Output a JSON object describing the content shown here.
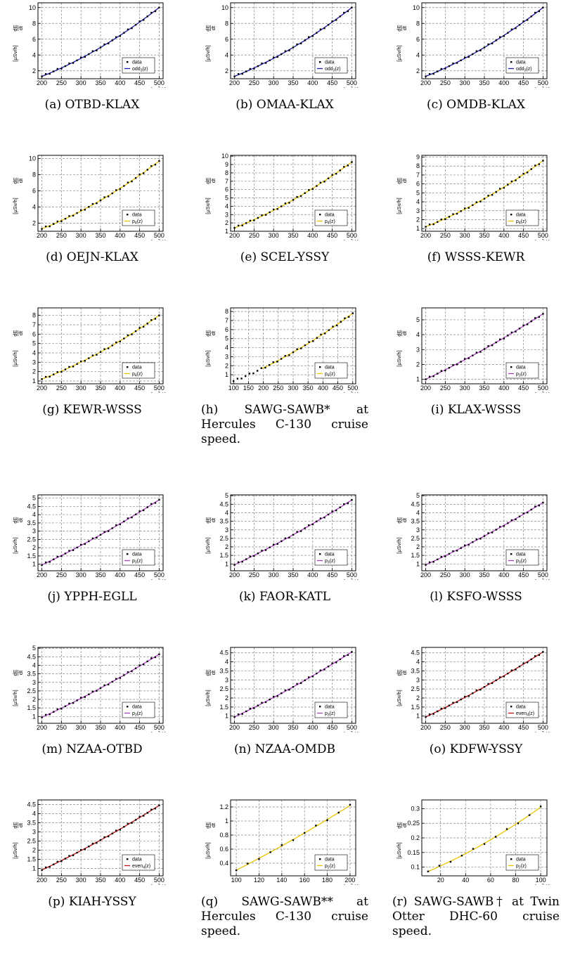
{
  "ylabel_top": "dE",
  "ylabel_bottom": "dt",
  "ylabel_unit": "[μSv/h]",
  "xlabel": "z [10",
  "xlabel_exp": "2",
  "xlabel_unit": " ft]",
  "legend_data": "data",
  "chart_data": [
    {
      "id": "a",
      "route": "OTBD-KLAX",
      "caption": "(a) OTBD-KLAX",
      "fit": "odd",
      "fit_sub": "3",
      "fit_color": "#1a1aa8",
      "xlim": [
        190,
        510
      ],
      "xticks": [
        200,
        250,
        300,
        350,
        400,
        450,
        500
      ],
      "ylim": [
        1,
        10.6
      ],
      "yticks": [
        2,
        4,
        6,
        8,
        10
      ],
      "x_start": 200,
      "x_end": 500,
      "y_start": 1.3,
      "y_end": 10.0,
      "curv": 0.32
    },
    {
      "id": "b",
      "route": "OMAA-KLAX",
      "caption": "(b) OMAA-KLAX",
      "fit": "odd",
      "fit_sub": "3",
      "fit_color": "#1a1aa8",
      "xlim": [
        190,
        510
      ],
      "xticks": [
        200,
        250,
        300,
        350,
        400,
        450,
        500
      ],
      "ylim": [
        1,
        10.6
      ],
      "yticks": [
        2,
        4,
        6,
        8,
        10
      ],
      "x_start": 200,
      "x_end": 500,
      "y_start": 1.3,
      "y_end": 10.0,
      "curv": 0.32
    },
    {
      "id": "c",
      "route": "OMDB-KLAX",
      "caption": "(c) OMDB-KLAX",
      "fit": "odd",
      "fit_sub": "3",
      "fit_color": "#1a1aa8",
      "xlim": [
        190,
        510
      ],
      "xticks": [
        200,
        250,
        300,
        350,
        400,
        450,
        500
      ],
      "ylim": [
        1,
        10.6
      ],
      "yticks": [
        2,
        4,
        6,
        8,
        10
      ],
      "x_start": 200,
      "x_end": 500,
      "y_start": 1.3,
      "y_end": 10.0,
      "curv": 0.32
    },
    {
      "id": "d",
      "route": "OEJN-KLAX",
      "caption": "(d) OEJN-KLAX",
      "fit": "p",
      "fit_sub": "4",
      "fit_color": "#e8c400",
      "xlim": [
        190,
        510
      ],
      "xticks": [
        200,
        250,
        300,
        350,
        400,
        450,
        500
      ],
      "ylim": [
        1,
        10.4
      ],
      "yticks": [
        2,
        4,
        6,
        8,
        10
      ],
      "x_start": 200,
      "x_end": 500,
      "y_start": 1.3,
      "y_end": 9.7,
      "curv": 0.32
    },
    {
      "id": "e",
      "route": "SCEL-YSSY",
      "caption": "(e) SCEL-YSSY",
      "fit": "p",
      "fit_sub": "4",
      "fit_color": "#e8c400",
      "xlim": [
        190,
        510
      ],
      "xticks": [
        200,
        250,
        300,
        350,
        400,
        450,
        500
      ],
      "ylim": [
        1,
        10.1
      ],
      "yticks": [
        1,
        2,
        3,
        4,
        5,
        6,
        7,
        8,
        9,
        10
      ],
      "x_start": 200,
      "x_end": 500,
      "y_start": 1.4,
      "y_end": 9.3,
      "curv": 0.3
    },
    {
      "id": "f",
      "route": "WSSS-KEWR",
      "caption": "(f) WSSS-KEWR",
      "fit": "p",
      "fit_sub": "4",
      "fit_color": "#e8c400",
      "xlim": [
        190,
        510
      ],
      "xticks": [
        200,
        250,
        300,
        350,
        400,
        450,
        500
      ],
      "ylim": [
        0.7,
        9.2
      ],
      "yticks": [
        1,
        2,
        3,
        4,
        5,
        6,
        7,
        8,
        9
      ],
      "x_start": 200,
      "x_end": 500,
      "y_start": 1.2,
      "y_end": 8.6,
      "curv": 0.3
    },
    {
      "id": "g",
      "route": "KEWR-WSSS",
      "caption": "(g) KEWR-WSSS",
      "fit": "p",
      "fit_sub": "4",
      "fit_color": "#e8c400",
      "xlim": [
        190,
        510
      ],
      "xticks": [
        200,
        250,
        300,
        350,
        400,
        450,
        500
      ],
      "ylim": [
        0.7,
        8.8
      ],
      "yticks": [
        1,
        2,
        3,
        4,
        5,
        6,
        7,
        8
      ],
      "x_start": 200,
      "x_end": 500,
      "y_start": 1.2,
      "y_end": 8.0,
      "curv": 0.3
    },
    {
      "id": "h",
      "route": "SAWG-SAWB",
      "caption": "(h) SAWG-SAWB* at Hercules C-130 cruise speed.",
      "fit": "p",
      "fit_sub": "4",
      "fit_color": "#e8c400",
      "xlim": [
        90,
        510
      ],
      "xticks": [
        100,
        150,
        200,
        250,
        300,
        350,
        400,
        450,
        500
      ],
      "ylim": [
        0,
        8.4
      ],
      "yticks": [
        1,
        2,
        3,
        4,
        5,
        6,
        7,
        8
      ],
      "x_start": 100,
      "x_end": 500,
      "y_start": 0.3,
      "y_end": 7.8,
      "curv": 0.3,
      "fit_from": 195
    },
    {
      "id": "i",
      "route": "KLAX-WSSS",
      "caption": "(i) KLAX-WSSS",
      "fit": "p",
      "fit_sub": "3",
      "fit_color": "#b040c8",
      "xlim": [
        190,
        510
      ],
      "xticks": [
        200,
        250,
        300,
        350,
        400,
        450,
        500
      ],
      "ylim": [
        0.7,
        5.8
      ],
      "yticks": [
        1,
        2,
        3,
        4,
        5
      ],
      "x_start": 200,
      "x_end": 500,
      "y_start": 1.0,
      "y_end": 5.4,
      "curv": 0.15
    },
    {
      "id": "j",
      "route": "YPPH-EGLL",
      "caption": "(j) YPPH-EGLL",
      "fit": "p",
      "fit_sub": "3",
      "fit_color": "#b040c8",
      "xlim": [
        190,
        510
      ],
      "xticks": [
        200,
        250,
        300,
        350,
        400,
        450,
        500
      ],
      "ylim": [
        0.6,
        5.2
      ],
      "yticks": [
        1,
        1.5,
        2,
        2.5,
        3,
        3.5,
        4,
        4.5,
        5
      ],
      "x_start": 200,
      "x_end": 500,
      "y_start": 0.95,
      "y_end": 4.9,
      "curv": 0.15
    },
    {
      "id": "k",
      "route": "FAOR-KATL",
      "caption": "(k) FAOR-KATL",
      "fit": "p",
      "fit_sub": "3",
      "fit_color": "#b040c8",
      "xlim": [
        190,
        510
      ],
      "xticks": [
        200,
        250,
        300,
        350,
        400,
        450,
        500
      ],
      "ylim": [
        0.6,
        5.05
      ],
      "yticks": [
        1,
        1.5,
        2,
        2.5,
        3,
        3.5,
        4,
        4.5,
        5
      ],
      "x_start": 200,
      "x_end": 500,
      "y_start": 0.95,
      "y_end": 4.75,
      "curv": 0.15
    },
    {
      "id": "l",
      "route": "KSFO-WSSS",
      "caption": "(l) KSFO-WSSS",
      "fit": "p",
      "fit_sub": "3",
      "fit_color": "#b040c8",
      "xlim": [
        190,
        510
      ],
      "xticks": [
        200,
        250,
        300,
        350,
        400,
        450,
        500
      ],
      "ylim": [
        0.6,
        5.05
      ],
      "yticks": [
        1,
        1.5,
        2,
        2.5,
        3,
        3.5,
        4,
        4.5,
        5
      ],
      "x_start": 200,
      "x_end": 500,
      "y_start": 0.95,
      "y_end": 4.6,
      "curv": 0.15
    },
    {
      "id": "m",
      "route": "NZAA-OTBD",
      "caption": "(m) NZAA-OTBD",
      "fit": "p",
      "fit_sub": "3",
      "fit_color": "#b040c8",
      "xlim": [
        190,
        510
      ],
      "xticks": [
        200,
        250,
        300,
        350,
        400,
        450,
        500
      ],
      "ylim": [
        0.6,
        5.05
      ],
      "yticks": [
        1,
        1.5,
        2,
        2.5,
        3,
        3.5,
        4,
        4.5,
        5
      ],
      "x_start": 200,
      "x_end": 500,
      "y_start": 0.95,
      "y_end": 4.65,
      "curv": 0.15
    },
    {
      "id": "n",
      "route": "NZAA-OMDB",
      "caption": "(n) NZAA-OMDB",
      "fit": "p",
      "fit_sub": "3",
      "fit_color": "#b040c8",
      "xlim": [
        190,
        510
      ],
      "xticks": [
        200,
        250,
        300,
        350,
        400,
        450,
        500
      ],
      "ylim": [
        0.6,
        4.8
      ],
      "yticks": [
        1,
        1.5,
        2,
        2.5,
        3,
        3.5,
        4,
        4.5
      ],
      "x_start": 200,
      "x_end": 500,
      "y_start": 0.95,
      "y_end": 4.55,
      "curv": 0.15
    },
    {
      "id": "o",
      "route": "KDFW-YSSY",
      "caption": "(o) KDFW-YSSY",
      "fit": "even",
      "fit_sub": "4",
      "fit_color": "#c01010",
      "xlim": [
        190,
        510
      ],
      "xticks": [
        200,
        250,
        300,
        350,
        400,
        450,
        500
      ],
      "ylim": [
        0.6,
        4.8
      ],
      "yticks": [
        1,
        1.5,
        2,
        2.5,
        3,
        3.5,
        4,
        4.5
      ],
      "x_start": 200,
      "x_end": 500,
      "y_start": 0.95,
      "y_end": 4.55,
      "curv": 0.15
    },
    {
      "id": "p",
      "route": "KIAH-YSSY",
      "caption": "(p) KIAH-YSSY",
      "fit": "even",
      "fit_sub": "4",
      "fit_color": "#c01010",
      "xlim": [
        190,
        510
      ],
      "xticks": [
        200,
        250,
        300,
        350,
        400,
        450,
        500
      ],
      "ylim": [
        0.6,
        4.75
      ],
      "yticks": [
        1,
        1.5,
        2,
        2.5,
        3,
        3.5,
        4,
        4.5
      ],
      "x_start": 200,
      "x_end": 500,
      "y_start": 0.92,
      "y_end": 4.45,
      "curv": 0.15
    },
    {
      "id": "q",
      "route": "SAWG-SAWB",
      "caption": "(q) SAWG-SAWB** at Hercules C-130 cruise speed.",
      "fit": "p",
      "fit_sub": "2",
      "fit_color": "#e8c400",
      "xlim": [
        95,
        205
      ],
      "xticks": [
        100,
        120,
        140,
        160,
        180,
        200
      ],
      "ylim": [
        0.22,
        1.3
      ],
      "yticks": [
        0.4,
        0.6,
        0.8,
        1,
        1.2
      ],
      "x_start": 100,
      "x_end": 200,
      "y_start": 0.3,
      "y_end": 1.22,
      "curv": 0.1,
      "sparse": true
    },
    {
      "id": "r",
      "route": "SAWG-SAWB",
      "caption": "(r) SAWG-SAWB† at Twin Otter DHC-60 cruise speed.",
      "fit": "p",
      "fit_sub": "2",
      "fit_color": "#e8c400",
      "xlim": [
        5,
        105
      ],
      "xticks": [
        20,
        40,
        60,
        80,
        100
      ],
      "ylim": [
        0.07,
        0.33
      ],
      "yticks": [
        0.1,
        0.15,
        0.2,
        0.25,
        0.3
      ],
      "x_start": 10,
      "x_end": 100,
      "y_start": 0.085,
      "y_end": 0.305,
      "curv": 0.25,
      "sparse": true
    }
  ]
}
